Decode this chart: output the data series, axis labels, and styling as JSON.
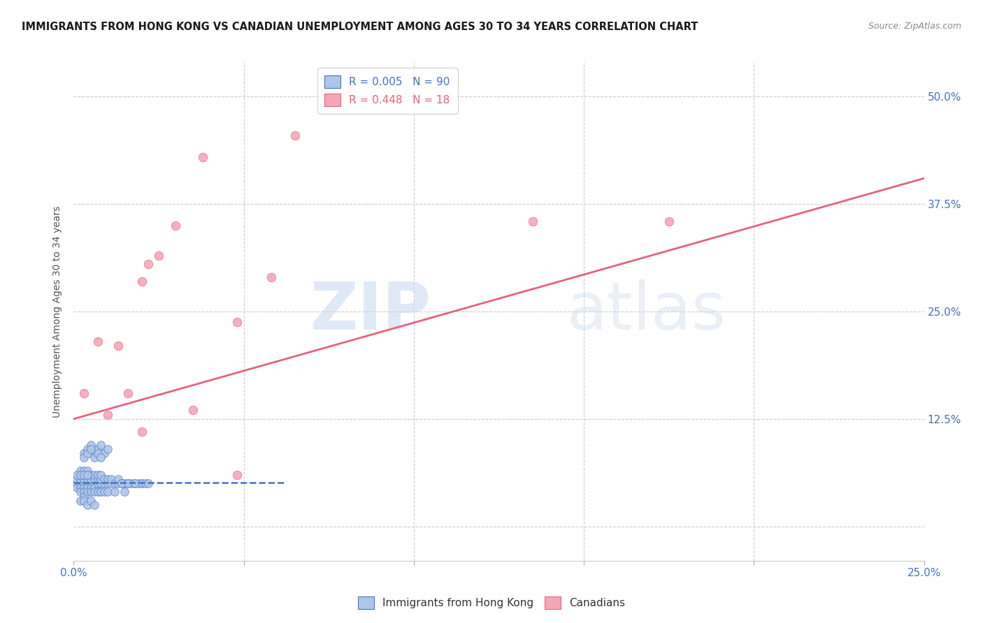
{
  "title": "IMMIGRANTS FROM HONG KONG VS CANADIAN UNEMPLOYMENT AMONG AGES 30 TO 34 YEARS CORRELATION CHART",
  "source": "Source: ZipAtlas.com",
  "ylabel": "Unemployment Among Ages 30 to 34 years",
  "ytick_labels": [
    "",
    "12.5%",
    "25.0%",
    "37.5%",
    "50.0%"
  ],
  "ytick_values": [
    0,
    0.125,
    0.25,
    0.375,
    0.5
  ],
  "xlim": [
    0,
    0.25
  ],
  "ylim": [
    -0.04,
    0.54
  ],
  "hk_color": "#aec6e8",
  "hk_edge_color": "#4472c4",
  "can_color": "#f4a7b9",
  "can_edge_color": "#e8627a",
  "R_hk": "0.005",
  "N_hk": "90",
  "R_can": "0.448",
  "N_can": "18",
  "watermark_zip": "ZIP",
  "watermark_atlas": "atlas",
  "legend_label_hk": "Immigrants from Hong Kong",
  "legend_label_can": "Canadians",
  "hk_scatter_x": [
    0.001,
    0.001,
    0.001,
    0.002,
    0.002,
    0.002,
    0.002,
    0.002,
    0.002,
    0.003,
    0.003,
    0.003,
    0.003,
    0.003,
    0.003,
    0.003,
    0.004,
    0.004,
    0.004,
    0.004,
    0.004,
    0.004,
    0.005,
    0.005,
    0.005,
    0.005,
    0.005,
    0.006,
    0.006,
    0.006,
    0.006,
    0.006,
    0.007,
    0.007,
    0.007,
    0.007,
    0.008,
    0.008,
    0.008,
    0.008,
    0.009,
    0.009,
    0.009,
    0.01,
    0.01,
    0.01,
    0.011,
    0.011,
    0.012,
    0.012,
    0.013,
    0.013,
    0.014,
    0.015,
    0.015,
    0.016,
    0.017,
    0.018,
    0.019,
    0.02,
    0.003,
    0.004,
    0.005,
    0.006,
    0.007,
    0.008,
    0.009,
    0.01,
    0.003,
    0.004,
    0.005,
    0.006,
    0.007,
    0.008,
    0.002,
    0.003,
    0.004,
    0.005,
    0.006,
    0.014,
    0.016,
    0.018,
    0.02,
    0.021,
    0.022,
    0.001,
    0.002,
    0.003,
    0.004
  ],
  "hk_scatter_y": [
    0.05,
    0.045,
    0.055,
    0.05,
    0.045,
    0.055,
    0.06,
    0.04,
    0.065,
    0.05,
    0.045,
    0.055,
    0.06,
    0.04,
    0.065,
    0.035,
    0.05,
    0.045,
    0.055,
    0.06,
    0.04,
    0.065,
    0.05,
    0.045,
    0.055,
    0.06,
    0.04,
    0.05,
    0.045,
    0.055,
    0.06,
    0.04,
    0.05,
    0.055,
    0.06,
    0.04,
    0.05,
    0.055,
    0.06,
    0.04,
    0.05,
    0.055,
    0.04,
    0.05,
    0.055,
    0.04,
    0.05,
    0.055,
    0.05,
    0.04,
    0.05,
    0.055,
    0.05,
    0.05,
    0.04,
    0.05,
    0.05,
    0.05,
    0.05,
    0.05,
    0.085,
    0.09,
    0.095,
    0.085,
    0.09,
    0.095,
    0.085,
    0.09,
    0.08,
    0.085,
    0.09,
    0.08,
    0.085,
    0.08,
    0.03,
    0.03,
    0.025,
    0.03,
    0.025,
    0.05,
    0.05,
    0.05,
    0.05,
    0.05,
    0.05,
    0.06,
    0.06,
    0.06,
    0.06
  ],
  "can_scatter_x": [
    0.003,
    0.007,
    0.01,
    0.013,
    0.016,
    0.02,
    0.022,
    0.025,
    0.03,
    0.038,
    0.048,
    0.058,
    0.065,
    0.135,
    0.175,
    0.048,
    0.02,
    0.035
  ],
  "can_scatter_y": [
    0.155,
    0.215,
    0.13,
    0.21,
    0.155,
    0.285,
    0.305,
    0.315,
    0.35,
    0.43,
    0.238,
    0.29,
    0.455,
    0.355,
    0.355,
    0.06,
    0.11,
    0.135
  ],
  "hk_trend_x": [
    0.0,
    0.062
  ],
  "hk_trend_y": [
    0.051,
    0.051
  ],
  "can_trend_x": [
    0.0,
    0.25
  ],
  "can_trend_y": [
    0.125,
    0.405
  ],
  "background_color": "#ffffff",
  "grid_color": "#cccccc",
  "title_color": "#1a1a1a",
  "axis_label_color": "#4472c4"
}
